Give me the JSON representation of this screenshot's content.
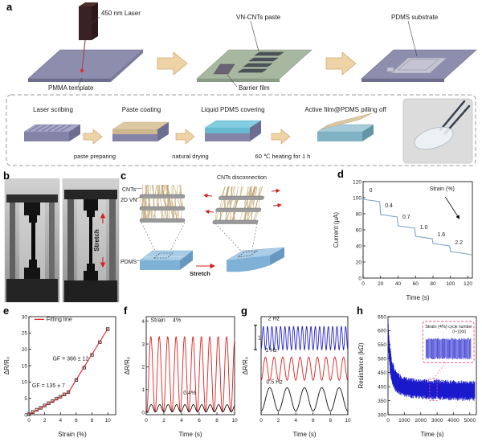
{
  "figure": {
    "panel_labels": {
      "a": "a",
      "b": "b",
      "c": "c",
      "d": "d",
      "e": "e",
      "f": "f",
      "g": "g",
      "h": "h"
    },
    "panel_a": {
      "laser_label": "450 nm Laser",
      "pmma_label": "PMMA template",
      "paste_label": "VN-CNTs paste",
      "barrier_label": "Barrier film",
      "pdms_label": "PDMS substrate",
      "steps": {
        "s1": "Laser scribing",
        "s2": "Paste coating",
        "s3": "Liquid PDMS covering",
        "s4": "Active film@PDMS pilling off"
      },
      "notes": {
        "n1": "paste preparing",
        "n2": "natural drying",
        "n3": "60 ℃ heating for 1 h"
      }
    },
    "panel_b": {
      "stretch": "Stretch"
    },
    "panel_c": {
      "cnts": "CNTs",
      "vn": "2D VN",
      "pdms": "PDMS",
      "stretch": "Stretch",
      "disconnection": "CNTs disconnection"
    }
  },
  "chart_data": [
    {
      "id": "d",
      "type": "line",
      "title": "",
      "xlabel": "Time (s)",
      "ylabel": "Current (μA)",
      "xlim": [
        0,
        125
      ],
      "ylim": [
        0,
        120
      ],
      "xticks": [
        0,
        20,
        40,
        60,
        80,
        100,
        120
      ],
      "yticks": [
        0,
        20,
        40,
        60,
        80,
        100,
        120
      ],
      "series": [
        {
          "name": "current",
          "color": "#7fa3c8",
          "points": [
            [
              0,
              98
            ],
            [
              19,
              95
            ],
            [
              20,
              79
            ],
            [
              39,
              76
            ],
            [
              40,
              65
            ],
            [
              59,
              62
            ],
            [
              60,
              52
            ],
            [
              79,
              49
            ],
            [
              80,
              43
            ],
            [
              99,
              40
            ],
            [
              100,
              33
            ],
            [
              119,
              30
            ],
            [
              124,
              29
            ]
          ]
        }
      ],
      "annotations": [
        {
          "x": 7,
          "y": 107,
          "text": "0"
        },
        {
          "x": 25,
          "y": 88,
          "text": "0.4"
        },
        {
          "x": 45,
          "y": 74,
          "text": "0.7"
        },
        {
          "x": 65,
          "y": 61,
          "text": "1.0"
        },
        {
          "x": 85,
          "y": 52,
          "text": "1.6"
        },
        {
          "x": 105,
          "y": 42,
          "text": "2.2"
        }
      ],
      "extra": {
        "strain_label": {
          "x": 76,
          "y": 109,
          "text": "Strain (%)"
        },
        "arrow": {
          "x1": 94,
          "y1": 101,
          "x2": 110,
          "y2": 74
        }
      }
    },
    {
      "id": "e",
      "type": "scatter",
      "title": "",
      "xlabel": "Strain (%)",
      "ylabel": "ΔR/R₀",
      "xlim": [
        0,
        11
      ],
      "ylim": [
        0,
        30
      ],
      "xticks": [
        0,
        2,
        4,
        6,
        8,
        10
      ],
      "yticks": [
        0,
        5,
        10,
        15,
        20,
        25,
        30
      ],
      "series": [
        {
          "name": "measured",
          "marker": "square-open",
          "color": "#333333",
          "points": [
            [
              0,
              0.1
            ],
            [
              0.5,
              0.8
            ],
            [
              1,
              1.5
            ],
            [
              1.5,
              2.1
            ],
            [
              2,
              2.8
            ],
            [
              2.5,
              3.5
            ],
            [
              3,
              4.2
            ],
            [
              3.5,
              4.9
            ],
            [
              4,
              5.5
            ],
            [
              4.5,
              6.2
            ],
            [
              5,
              6.9
            ],
            [
              6,
              10.6
            ],
            [
              7,
              14.4
            ],
            [
              8,
              18.3
            ],
            [
              9,
              22.2
            ],
            [
              10,
              26.2
            ]
          ]
        },
        {
          "name": "fit",
          "color": "#e02020",
          "points": [
            [
              0,
              0
            ],
            [
              5,
              6.8
            ],
            [
              10,
              26.3
            ]
          ]
        }
      ],
      "legend": {
        "x": 0.7,
        "y": 28.6,
        "label": "Fitting line",
        "color": "#e02020"
      },
      "annotations": [
        {
          "x": 3.0,
          "y": 16.6,
          "text": "GF = 386 ± 12"
        },
        {
          "x": 0.4,
          "y": 8.4,
          "text": "GF = 135 ± 7"
        }
      ]
    },
    {
      "id": "f",
      "type": "cycles",
      "title": "",
      "xlabel": "Time (s)",
      "ylabel": "ΔR/R₀",
      "xlim": [
        0,
        10
      ],
      "ylim": [
        -0.1,
        4.2
      ],
      "xticks": [
        0,
        2,
        4,
        6,
        8,
        10
      ],
      "yticks": [
        0,
        1,
        2,
        3,
        4
      ],
      "series": [
        {
          "name": "strain 4%",
          "color": "#e02020",
          "freq": 1.05,
          "amp": 3.3,
          "offset": 0.02,
          "phase": 0.05
        },
        {
          "name": "strain 0.4%",
          "color": "#111111",
          "freq": 1.05,
          "amp": 0.32,
          "offset": 0.02,
          "phase": 0.1
        }
      ],
      "annotations": [
        {
          "x": 0.5,
          "y": 3.97,
          "text": "Strain",
          "color": "#111111"
        },
        {
          "x": 3.0,
          "y": 3.97,
          "text": "4%",
          "color": "#e02020"
        },
        {
          "x": 4.2,
          "y": 0.78,
          "text": "0.4%",
          "color": "#111111"
        }
      ]
    },
    {
      "id": "g",
      "type": "cycles",
      "title": "",
      "xlabel": "Time (s)",
      "ylabel": "ΔR/R₀",
      "xlim": [
        0,
        10
      ],
      "ylim": [
        -0.1,
        3.9
      ],
      "xticks": [
        0,
        2,
        4,
        6,
        8,
        10
      ],
      "yticks": [],
      "series": [
        {
          "name": "2 Hz",
          "color": "#2323cc",
          "freq": 2,
          "amp": 0.95,
          "offset": 2.55,
          "phase": 0
        },
        {
          "name": "1 Hz",
          "color": "#e02020",
          "freq": 1,
          "amp": 0.95,
          "offset": 1.3,
          "phase": 0
        },
        {
          "name": "0.5 Hz",
          "color": "#111111",
          "freq": 0.5,
          "amp": 0.95,
          "offset": 0.05,
          "phase": 0
        }
      ],
      "scalebar": {
        "x": -0.65,
        "y1": 2.55,
        "y2": 3.55,
        "label": "1"
      },
      "annotations": [
        {
          "x": 0.8,
          "y": 3.76,
          "text": "2 Hz",
          "color": "#2323cc"
        },
        {
          "x": 0.5,
          "y": 2.46,
          "text": "1 Hz",
          "color": "#e02020"
        },
        {
          "x": 0.6,
          "y": 1.16,
          "text": "0.5 Hz",
          "color": "#111111"
        }
      ]
    },
    {
      "id": "h",
      "type": "noiseband",
      "title": "",
      "xlabel": "Time (s)",
      "ylabel": "Resistance (kΩ)",
      "xlim": [
        0,
        5400
      ],
      "ylim": [
        300,
        650
      ],
      "xticks": [
        0,
        1000,
        2000,
        3000,
        4000,
        5000
      ],
      "yticks": [
        300,
        350,
        400,
        450,
        500,
        550,
        600,
        650
      ],
      "series": [
        {
          "name": "resistance",
          "color": "#1a1acc",
          "envelope": [
            [
              0,
              595,
              640
            ],
            [
              40,
              520,
              610
            ],
            [
              100,
              460,
              560
            ],
            [
              200,
              415,
              510
            ],
            [
              400,
              385,
              470
            ],
            [
              700,
              370,
              445
            ],
            [
              1200,
              360,
              432
            ],
            [
              2000,
              355,
              428
            ],
            [
              3000,
              352,
              426
            ],
            [
              4000,
              350,
              424
            ],
            [
              5300,
              348,
              422
            ]
          ]
        }
      ],
      "inset": {
        "label1": "Strain (4%)",
        "label2": "cycle number",
        "label3": "0~1000",
        "box_data": [
          2550,
          3000,
          350,
          428
        ]
      }
    }
  ]
}
